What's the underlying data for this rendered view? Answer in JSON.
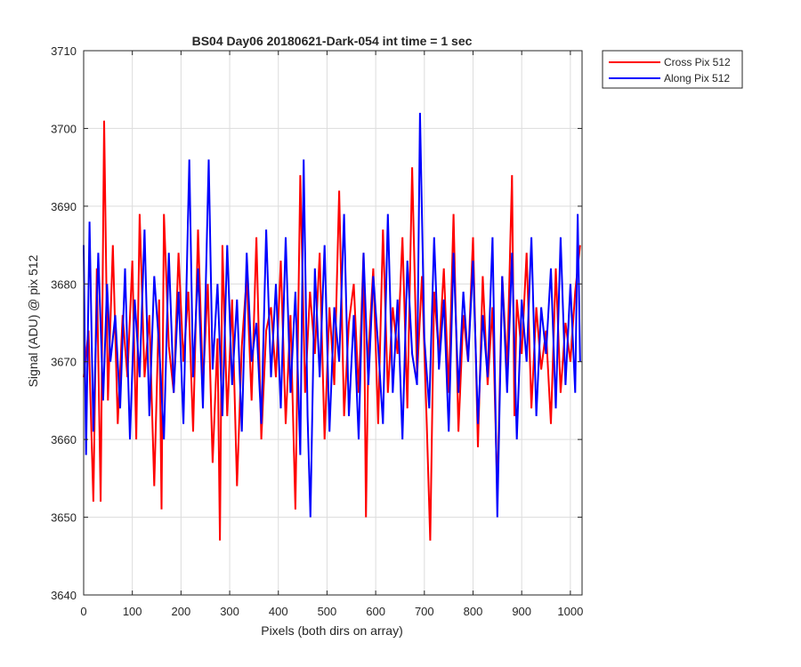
{
  "chart_data": {
    "type": "line",
    "title": "BS04 Day06 20180621-Dark-054 int time = 1 sec",
    "xlabel": "Pixels (both dirs on array)",
    "ylabel": "Signal (ADU) @ pix 512",
    "xlim": [
      0,
      1024
    ],
    "ylim": [
      3640,
      3710
    ],
    "xticks": [
      0,
      100,
      200,
      300,
      400,
      500,
      600,
      700,
      800,
      900,
      1000
    ],
    "yticks": [
      3640,
      3650,
      3660,
      3670,
      3680,
      3690,
      3700,
      3710
    ],
    "grid": true,
    "legend_position": "outside-top-right",
    "series": [
      {
        "name": "Cross Pix 512",
        "color": "#ff0000",
        "x": [
          0,
          10,
          20,
          27,
          35,
          42,
          50,
          60,
          70,
          80,
          90,
          100,
          108,
          115,
          125,
          135,
          145,
          155,
          160,
          165,
          175,
          185,
          195,
          205,
          215,
          225,
          235,
          245,
          255,
          265,
          275,
          280,
          285,
          295,
          305,
          315,
          325,
          335,
          345,
          355,
          365,
          375,
          385,
          395,
          405,
          415,
          425,
          435,
          445,
          455,
          465,
          475,
          485,
          495,
          505,
          515,
          525,
          535,
          545,
          555,
          565,
          575,
          580,
          585,
          595,
          605,
          615,
          625,
          635,
          645,
          655,
          665,
          675,
          685,
          695,
          705,
          712,
          720,
          730,
          740,
          750,
          760,
          770,
          780,
          790,
          800,
          810,
          820,
          830,
          840,
          850,
          860,
          870,
          880,
          885,
          890,
          900,
          910,
          920,
          930,
          940,
          950,
          960,
          970,
          980,
          990,
          1000,
          1010,
          1020
        ],
        "y": [
          3668,
          3674,
          3652,
          3682,
          3652,
          3701,
          3665,
          3685,
          3662,
          3676,
          3668,
          3683,
          3660,
          3689,
          3668,
          3676,
          3654,
          3678,
          3651,
          3689,
          3672,
          3666,
          3684,
          3670,
          3679,
          3661,
          3687,
          3667,
          3680,
          3657,
          3673,
          3647,
          3685,
          3663,
          3678,
          3654,
          3672,
          3681,
          3665,
          3686,
          3660,
          3674,
          3677,
          3668,
          3683,
          3662,
          3676,
          3651,
          3694,
          3666,
          3679,
          3671,
          3684,
          3660,
          3677,
          3667,
          3692,
          3663,
          3675,
          3680,
          3666,
          3684,
          3650,
          3671,
          3682,
          3662,
          3687,
          3666,
          3677,
          3671,
          3686,
          3664,
          3695,
          3668,
          3681,
          3662,
          3647,
          3679,
          3671,
          3682,
          3666,
          3689,
          3661,
          3676,
          3670,
          3686,
          3659,
          3681,
          3667,
          3677,
          3653,
          3681,
          3669,
          3694,
          3663,
          3678,
          3671,
          3684,
          3664,
          3677,
          3669,
          3674,
          3662,
          3682,
          3666,
          3675,
          3670,
          3679,
          3685
        ]
      },
      {
        "name": "Along Pix 512",
        "color": "#0000ff",
        "x": [
          0,
          5,
          12,
          20,
          30,
          40,
          48,
          55,
          65,
          75,
          85,
          95,
          105,
          115,
          125,
          135,
          145,
          155,
          165,
          175,
          185,
          195,
          205,
          217,
          225,
          235,
          245,
          257,
          265,
          275,
          285,
          295,
          305,
          315,
          325,
          335,
          345,
          355,
          365,
          375,
          385,
          395,
          405,
          415,
          425,
          435,
          445,
          452,
          460,
          466,
          475,
          485,
          495,
          505,
          515,
          525,
          535,
          545,
          555,
          565,
          575,
          585,
          595,
          605,
          615,
          625,
          635,
          645,
          655,
          665,
          675,
          685,
          691,
          700,
          710,
          720,
          730,
          740,
          750,
          760,
          770,
          780,
          790,
          800,
          810,
          820,
          830,
          840,
          850,
          860,
          870,
          880,
          890,
          900,
          910,
          920,
          930,
          940,
          950,
          960,
          970,
          980,
          990,
          1000,
          1010,
          1015,
          1020
        ],
        "y": [
          3685,
          3658,
          3688,
          3661,
          3684,
          3665,
          3680,
          3670,
          3676,
          3664,
          3682,
          3660,
          3678,
          3668,
          3687,
          3663,
          3681,
          3672,
          3660,
          3684,
          3666,
          3679,
          3662,
          3696,
          3668,
          3682,
          3664,
          3696,
          3669,
          3680,
          3663,
          3685,
          3667,
          3678,
          3661,
          3684,
          3670,
          3675,
          3662,
          3687,
          3668,
          3680,
          3664,
          3686,
          3666,
          3679,
          3658,
          3696,
          3663,
          3650,
          3682,
          3668,
          3685,
          3661,
          3677,
          3670,
          3689,
          3663,
          3676,
          3660,
          3684,
          3667,
          3681,
          3672,
          3662,
          3689,
          3666,
          3678,
          3660,
          3683,
          3671,
          3667,
          3702,
          3673,
          3664,
          3686,
          3669,
          3678,
          3661,
          3684,
          3666,
          3679,
          3670,
          3683,
          3662,
          3676,
          3668,
          3686,
          3650,
          3681,
          3666,
          3684,
          3660,
          3678,
          3670,
          3686,
          3663,
          3677,
          3671,
          3682,
          3664,
          3686,
          3667,
          3680,
          3666,
          3689,
          3670
        ]
      }
    ]
  }
}
